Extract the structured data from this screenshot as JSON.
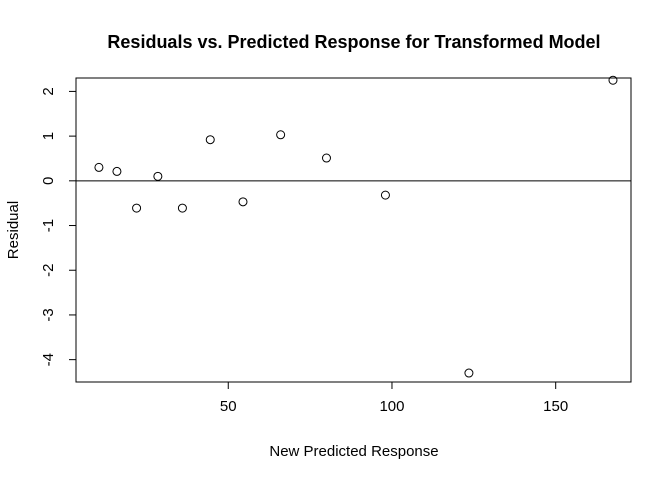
{
  "chart_data": {
    "type": "scatter",
    "title": "Residuals vs. Predicted Response for Transformed Model",
    "xlabel": "New Predicted Response",
    "ylabel": "Residual",
    "xlim": [
      3.5,
      173
    ],
    "ylim": [
      -4.5,
      2.3
    ],
    "xticks": [
      50,
      100,
      150
    ],
    "yticks": [
      -4,
      -3,
      -2,
      -1,
      0,
      1,
      2
    ],
    "reference_line": 0,
    "grid": false,
    "points": [
      {
        "x": 10.5,
        "y": 0.3
      },
      {
        "x": 16.0,
        "y": 0.21
      },
      {
        "x": 22.0,
        "y": -0.61
      },
      {
        "x": 28.5,
        "y": 0.1
      },
      {
        "x": 36.0,
        "y": -0.61
      },
      {
        "x": 44.5,
        "y": 0.92
      },
      {
        "x": 54.5,
        "y": -0.47
      },
      {
        "x": 66.0,
        "y": 1.03
      },
      {
        "x": 80.0,
        "y": 0.51
      },
      {
        "x": 98.0,
        "y": -0.32
      },
      {
        "x": 123.5,
        "y": -4.3
      },
      {
        "x": 167.5,
        "y": 2.25
      }
    ]
  }
}
